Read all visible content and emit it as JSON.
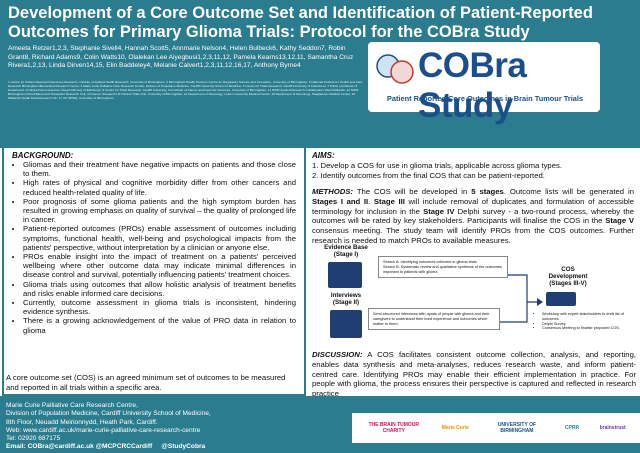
{
  "header": {
    "title": "Development of a Core Outcome Set and Identification of Patient-Reported Outcomes for Primary Glioma Trials: Protocol for the COBra Study",
    "authors": "Ameeta Retzer1,2,3, Stephanie Sivell4, Hannah Scott5, Annmarie Nelson4, Helen Bulbeck6, Kathy Seddon7, Robin Grant8, Richard Adams9, Colin Watts10, Olalekan Lee Aiyegbusi1,2,3,11,12, Pamela Kearns13,12,11, Samantha Cruz Rivera1,2,13, Linda Dirven14,15, Elin Baddeley4, Melanie Calvert1,2,3,11,12,16,17, Anthony Byrne4",
    "affiliations": "1 Centre for Patient Reported Outcomes Research, Institute of Applied Health Research, University of Birmingham; 2 Birmingham Health Partners Centre for Regulatory Science and Innovation, University of Birmingham; 3 National Institute for Health and Care Research Birmingham Biomedical Research Centre; 4 Marie Curie Palliative Care Research Centre, Division of Population Medicine, Cardiff University School of Medicine; 5 Centre for Trials Research, Cardiff University; 6 brainstrust; 7 Public contributor; 8 Department of Clinical Neurosciences, Royal Infirmary of Edinburgh; 9 Centre for Trials Research, Cardiff University; 10 Institute of Cancer and Genomic Sciences, University of Birmingham; 11 NIHR Applied Research Collaboration West Midlands; 12 NIHR Birmingham-Oxford Blood and Transplant Research Unit; 13 Cancer Research UK Clinical Trials Unit, University of Birmingham; 14 Department of Neurology, Leiden University Medical Center; 15 Department of Neurology, Haaglanden Medical Center; 16 Midlands Health Data Research UK; 17 UK SPINE, University of Birmingham"
  },
  "logo": {
    "title": "COBra Study",
    "subtitle": "Patient Reported Core Outcomes in Brain Tumour Trials"
  },
  "background": {
    "heading": "BACKGROUND:",
    "bullets": [
      "Gliomas and their treatment have negative impacts on patients and those close to them.",
      "High rates of physical and cognitive morbidity differ from other cancers and reduced health-related quality of life.",
      "Poor prognosis of some glioma patients and the high symptom burden has resulted in growing emphasis on quality of survival – the quality of prolonged life in cancer.",
      "Patient-reported outcomes (PROs) enable assessment of outcomes including symptoms, functional health, well-being and psychological impacts from the patients' perspective, without interpretation by a clinician or anyone else.",
      "PROs enable insight into the impact of treatment on a patients' perceived wellbeing where other outcome data may indicate minimal differences in disease control and survival, potentially influencing patients' treatment choices.",
      "Glioma trials using outcomes that allow holistic analysis of treatment benefits and risks enable informed care decisions.",
      "Currently, outcome assessment in glioma trials is inconsistent, hindering evidence synthesis.",
      "There is a growing acknowledgement of the value of PRO data in relation to glioma"
    ],
    "note": "A core outcome set (COS) is an agreed minimum set of outcomes to be measured and reported in all trials within a specific area."
  },
  "aims": {
    "heading": "AIMS:",
    "items": [
      "1. Develop a COS for use in glioma trials, applicable across glioma types.",
      "2. Identify outcomes from the final COS that can be patient-reported."
    ]
  },
  "methods": {
    "heading": "METHODS:",
    "segments": [
      {
        "text": " The COS will be developed in ",
        "bold": false
      },
      {
        "text": "5 stages",
        "bold": true
      },
      {
        "text": ". Outcome lists will be generated in ",
        "bold": false
      },
      {
        "text": "Stages I and II",
        "bold": true
      },
      {
        "text": ". ",
        "bold": false
      },
      {
        "text": "Stage III",
        "bold": true
      },
      {
        "text": " will include removal of duplicates and formulation of accessible terminology for inclusion in the ",
        "bold": false
      },
      {
        "text": "Stage IV",
        "bold": true
      },
      {
        "text": " Delphi survey - a two-round process, whereby the outcomes will be rated by key stakeholders. Participants will finalise the COS in the ",
        "bold": false
      },
      {
        "text": "Stage V",
        "bold": true
      },
      {
        "text": " consensus meeting. The study team will identify PROs from the COS outcomes. Further research is needed to match PROs to available measures.",
        "bold": false
      }
    ]
  },
  "diagram": {
    "evidence": {
      "label": "Evidence Base",
      "stage": "(Stage I)",
      "items": [
        "Search A: Identifying outcomes collected in glioma trials",
        "Search B: Systematic review and qualitative synthesis of the outcomes important to patients with glioma"
      ]
    },
    "interviews": {
      "label": "Interviews",
      "stage": "(Stage II)",
      "text": "Semi-structured interviews with dyads of people with glioma and their caregivers to understand their lived experience and outcomes which matter to them."
    },
    "cos": {
      "label": "COS",
      "label2": "Development",
      "stage": "(Stages III-V)",
      "items": [
        "Workshop with expert stakeholders to draft list of outcomes.",
        "Delphi Survey",
        "Consensus Meeting to finalise proposed COS."
      ]
    }
  },
  "discussion": {
    "heading": "DISCUSSION:",
    "text": " A COS facilitates consistent outcome collection, analysis, and reporting, enables data synthesis and meta-analyses, reduces research waste, and inform patient-centred care. Identifying PROs may enable their efficient implementation in practice. For people with glioma, the process ensures their perspective is captured and reflected in research practice"
  },
  "footer": {
    "lines": [
      "Marie Curie Palliative Care Research Centre,",
      "Division of Population Medicine, Cardiff University School of Medicine,",
      "8th Floor, Neuadd Meirionnydd, Heath Park, Cardiff.",
      "Web: www.cardiff.ac.uk/marie-curie-palliative-care-research-centre",
      "Tel: 02920 687175"
    ],
    "contact": "Email: COBra@cardiff.ac.uk @MCPCRCCardiff",
    "social": "@StudyCobra",
    "logos": [
      "THE BRAIN TUMOUR CHARITY",
      "Marie Curie",
      "UNIVERSITY OF BIRMINGHAM",
      "CPRR",
      "brainstrust"
    ]
  }
}
